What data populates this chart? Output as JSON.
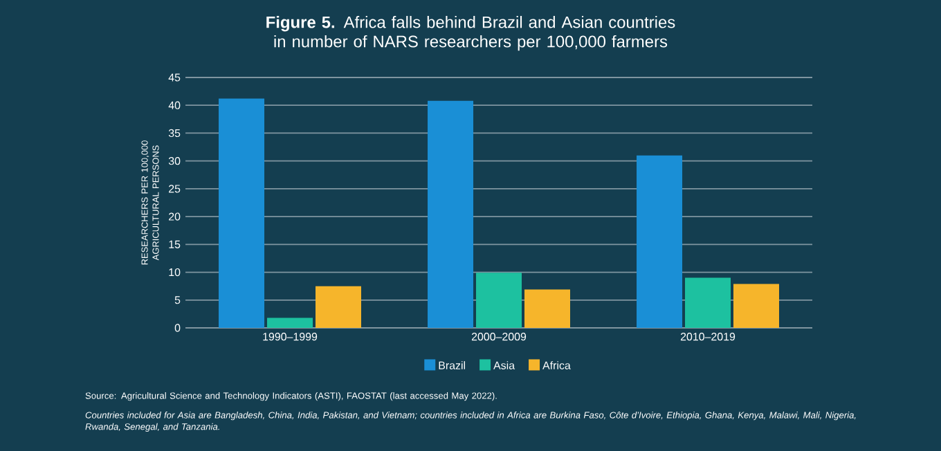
{
  "chart_data": {
    "type": "bar",
    "title": "**Figure 5.** Africa falls behind Brazil and Asian countries in number of NARS researchers per 100,000 farmers",
    "ylabel": "RESEARCHERS PER 100,000 AGRICULTURAL PERSONS",
    "categories": [
      "1990–1999",
      "2000–2009",
      "2010–2019"
    ],
    "series": [
      {
        "name": "Brazil",
        "color": "#1a8fd6",
        "values": [
          41.2,
          40.8,
          31
        ]
      },
      {
        "name": "Asia",
        "color": "#1dc1a0",
        "values": [
          1.8,
          9.9,
          9
        ]
      },
      {
        "name": "Africa",
        "color": "#f6b52b",
        "values": [
          7.5,
          6.9,
          7.9
        ]
      }
    ],
    "ylim": [
      0,
      45
    ],
    "yticks": [
      0,
      5,
      10,
      15,
      20,
      25,
      30,
      35,
      40,
      45
    ],
    "grid": "y",
    "legend": "bottom",
    "annotations": [
      "Source: Agricultural Science and Technology Indicators (ASTI), FAOSTAT (last accessed May 2022).",
      "*Countries included for Asia are Bangladesh, China, India, Pakistan, and Vietnam; countries included in Africa are Burkina Faso, Côte d’Ivoire, Ethiopia, Ghana, Kenya, Malawi, Mali, Nigeria, Rwanda, Senegal, and Tanzania.*"
    ]
  }
}
